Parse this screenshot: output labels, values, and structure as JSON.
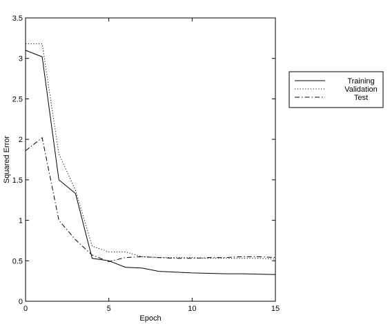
{
  "chart_data": {
    "type": "line",
    "title": "",
    "xlabel": "Epoch",
    "ylabel": "Squared Error",
    "xlim": [
      0,
      15
    ],
    "ylim": [
      0,
      3.5
    ],
    "xticks": [
      0,
      5,
      10,
      15
    ],
    "yticks": [
      0,
      0.5,
      1,
      1.5,
      2,
      2.5,
      3,
      3.5
    ],
    "xtick_labels": [
      "0",
      "5",
      "10",
      "15"
    ],
    "ytick_labels": [
      "0",
      "0.5",
      "1",
      "1.5",
      "2",
      "2.5",
      "3",
      "3.5"
    ],
    "grid": false,
    "legend_position": "outside-right",
    "series": [
      {
        "name": "Training",
        "style": "solid",
        "color": "#000000",
        "x": [
          0,
          1,
          2,
          3,
          4,
          5,
          6,
          7,
          8,
          9,
          10,
          11,
          12,
          13,
          14,
          15
        ],
        "y": [
          3.1,
          3.02,
          1.5,
          1.33,
          0.53,
          0.5,
          0.42,
          0.41,
          0.37,
          0.36,
          0.35,
          0.345,
          0.34,
          0.34,
          0.335,
          0.33
        ]
      },
      {
        "name": "Validation",
        "style": "dotted",
        "color": "#000000",
        "x": [
          0,
          1,
          2,
          3,
          4,
          5,
          6,
          7,
          8,
          9,
          10,
          11,
          12,
          13,
          14,
          15
        ],
        "y": [
          3.18,
          3.18,
          1.82,
          1.37,
          0.68,
          0.61,
          0.61,
          0.55,
          0.54,
          0.54,
          0.54,
          0.53,
          0.53,
          0.53,
          0.53,
          0.52
        ]
      },
      {
        "name": "Test",
        "style": "dashdot",
        "color": "#000000",
        "x": [
          0,
          1,
          2,
          3,
          4,
          5,
          6,
          7,
          8,
          9,
          10,
          11,
          12,
          13,
          14,
          15
        ],
        "y": [
          1.86,
          2.02,
          1.0,
          0.76,
          0.57,
          0.49,
          0.54,
          0.55,
          0.54,
          0.53,
          0.53,
          0.54,
          0.54,
          0.55,
          0.55,
          0.54
        ]
      }
    ]
  }
}
